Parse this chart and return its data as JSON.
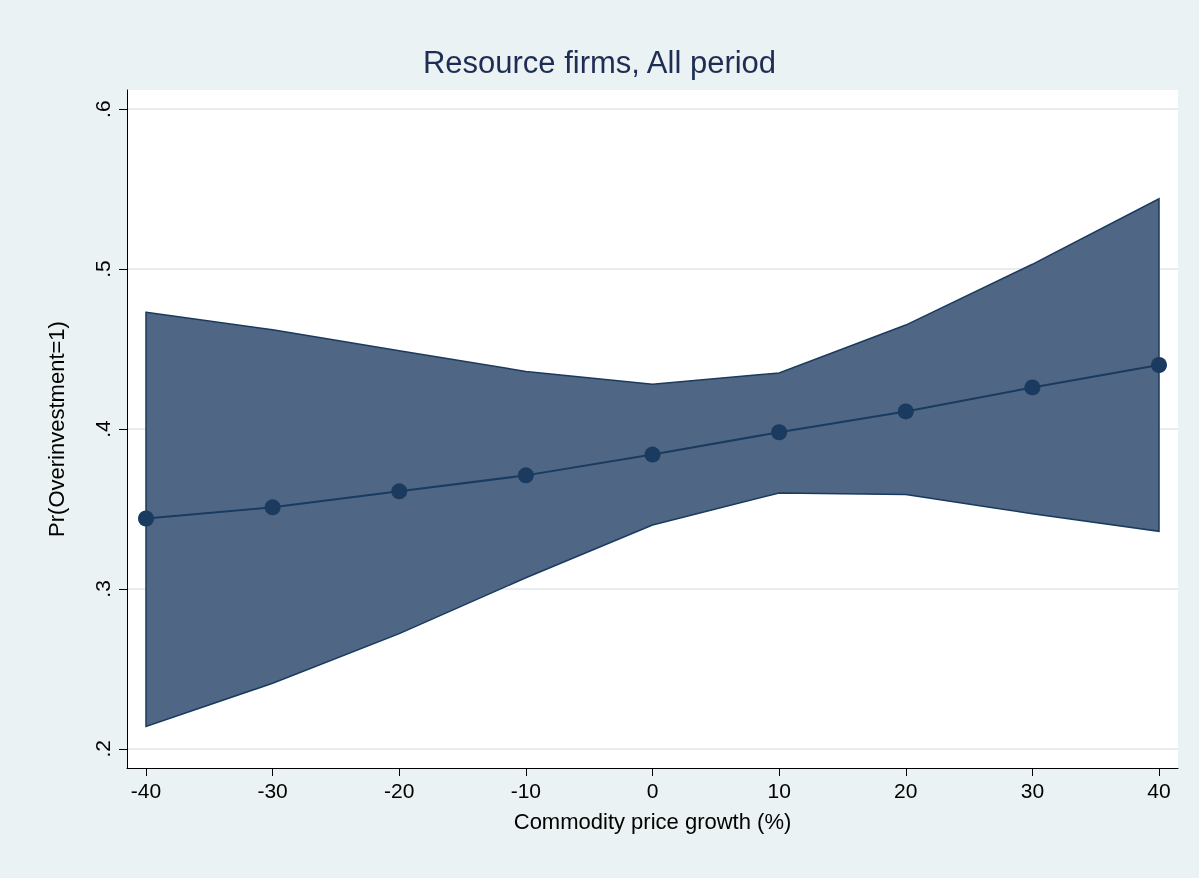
{
  "chart_data": {
    "type": "line",
    "title": "Resource firms, All period",
    "xlabel": "Commodity price growth (%)",
    "ylabel": "Pr(Overinvestment=1)",
    "x": [
      -40,
      -30,
      -20,
      -10,
      0,
      10,
      20,
      30,
      40
    ],
    "series": [
      {
        "color": "#1a3a5f",
        "values": [
          0.344,
          0.351,
          0.361,
          0.371,
          0.384,
          0.398,
          0.411,
          0.426,
          0.44
        ],
        "lower": [
          0.214,
          0.241,
          0.272,
          0.307,
          0.34,
          0.36,
          0.359,
          0.347,
          0.336
        ],
        "upper": [
          0.473,
          0.462,
          0.449,
          0.436,
          0.428,
          0.435,
          0.465,
          0.503,
          0.544
        ]
      }
    ],
    "xlim": [
      -41.5,
      41.5
    ],
    "ylim": [
      0.188,
      0.612
    ],
    "xticks": [
      -40,
      -30,
      -20,
      -10,
      0,
      10,
      20,
      30,
      40
    ],
    "yticks": [
      {
        "value": 0.2,
        "label": ".2"
      },
      {
        "value": 0.3,
        "label": ".3"
      },
      {
        "value": 0.4,
        "label": ".4"
      },
      {
        "value": 0.5,
        "label": ".5"
      },
      {
        "value": 0.6,
        "label": ".6"
      }
    ],
    "grid": "y",
    "marker": "circle",
    "line_style": "solid"
  }
}
